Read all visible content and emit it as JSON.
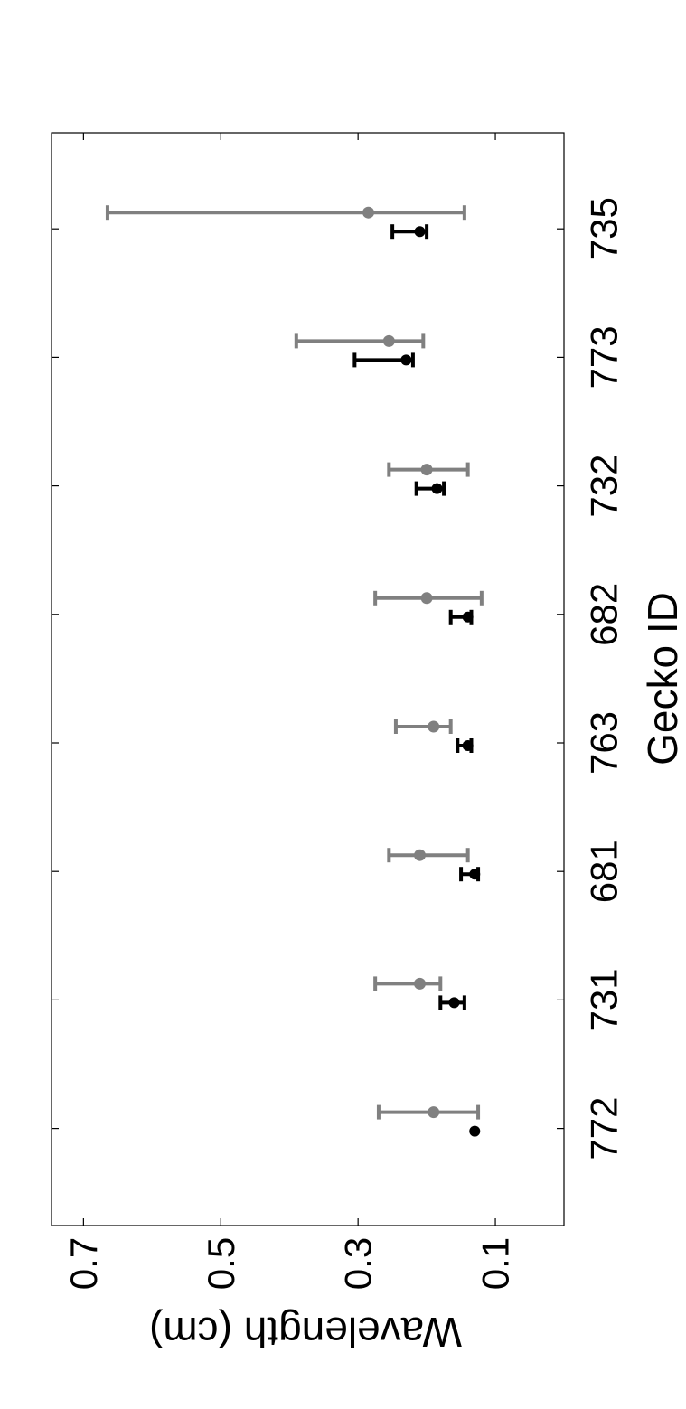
{
  "chart_data": {
    "type": "scatter",
    "orientation": "rotated-90-counterclockwise",
    "xlabel": "Gecko ID",
    "ylabel": "Wavelength (cm)",
    "categories": [
      "772",
      "731",
      "681",
      "763",
      "682",
      "732",
      "773",
      "735"
    ],
    "ylim": [
      0.0,
      0.75
    ],
    "yticks": [
      0.7,
      0.5,
      0.3,
      0.1
    ],
    "ytick_labels": [
      "0.7",
      "0.5",
      "0.3",
      "0.1"
    ],
    "grid": false,
    "series": [
      {
        "color": "#808080",
        "values": [
          0.19,
          0.21,
          0.21,
          0.19,
          0.2,
          0.2,
          0.255,
          0.285
        ],
        "lower": [
          0.125,
          0.18,
          0.14,
          0.165,
          0.12,
          0.14,
          0.205,
          0.145
        ],
        "upper": [
          0.27,
          0.275,
          0.255,
          0.245,
          0.275,
          0.255,
          0.39,
          0.665
        ]
      },
      {
        "color": "#000000",
        "values": [
          0.13,
          0.16,
          0.13,
          0.14,
          0.14,
          0.185,
          0.23,
          0.21
        ],
        "lower": [
          0.13,
          0.145,
          0.125,
          0.135,
          0.135,
          0.175,
          0.22,
          0.2
        ],
        "upper": [
          0.13,
          0.18,
          0.15,
          0.155,
          0.165,
          0.215,
          0.305,
          0.25
        ]
      }
    ]
  }
}
